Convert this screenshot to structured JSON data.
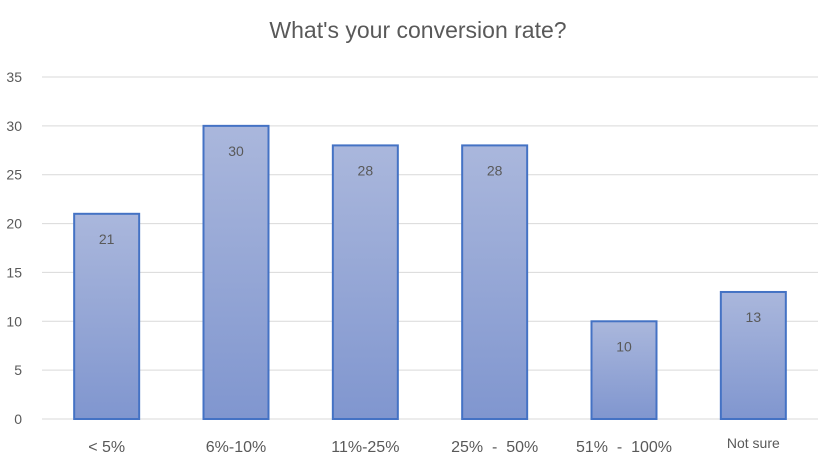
{
  "chart_data": {
    "type": "bar",
    "title": "What's your conversion rate?",
    "categories": [
      "< 5%",
      "6%-10%",
      "11%-25%",
      "25%  -  50%",
      "51%  -  100%",
      "Not sure"
    ],
    "values": [
      21,
      30,
      28,
      28,
      10,
      13
    ],
    "data_labels": [
      "21",
      "30",
      "28",
      "28",
      "10",
      "13"
    ],
    "xlabel": "",
    "ylabel": "",
    "ylim": [
      0,
      35
    ],
    "yticks": [
      "0",
      "5",
      "10",
      "15",
      "20",
      "25",
      "30",
      "35"
    ],
    "ytick_values": [
      0,
      5,
      10,
      15,
      20,
      25,
      30,
      35
    ],
    "grid": true,
    "legend": "none",
    "colors": {
      "bar_fill_top": "#aab7dc",
      "bar_fill_bottom": "#8096cf",
      "bar_edge": "#4472c4",
      "grid": "#d9d9d9",
      "text": "#595959"
    }
  }
}
